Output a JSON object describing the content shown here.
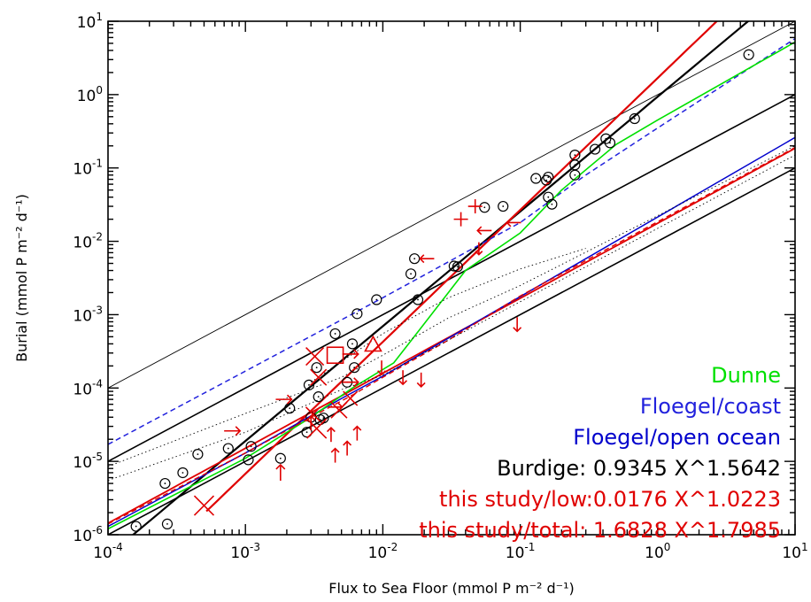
{
  "chart_data": {
    "type": "scatter",
    "xscale": "log",
    "yscale": "log",
    "xlim": [
      0.0001,
      10
    ],
    "ylim": [
      1e-06,
      10
    ],
    "xlabel": "Flux to Sea Floor (mmol P m⁻² d⁻¹)",
    "ylabel": "Burial (mmol P m⁻² d⁻¹)",
    "x_tick_labels": [
      {
        "value": 0.0001,
        "base": "10",
        "exp": "-4"
      },
      {
        "value": 0.001,
        "base": "10",
        "exp": "-3"
      },
      {
        "value": 0.01,
        "base": "10",
        "exp": "-2"
      },
      {
        "value": 0.1,
        "base": "10",
        "exp": "-1"
      },
      {
        "value": 1,
        "base": "10",
        "exp": "0"
      },
      {
        "value": 10,
        "base": "10",
        "exp": "1"
      }
    ],
    "y_tick_labels": [
      {
        "value": 1e-06,
        "base": "10",
        "exp": "-6"
      },
      {
        "value": 1e-05,
        "base": "10",
        "exp": "-5"
      },
      {
        "value": 0.0001,
        "base": "10",
        "exp": "-4"
      },
      {
        "value": 0.001,
        "base": "10",
        "exp": "-3"
      },
      {
        "value": 0.01,
        "base": "10",
        "exp": "-2"
      },
      {
        "value": 0.1,
        "base": "10",
        "exp": "-1"
      },
      {
        "value": 1,
        "base": "10",
        "exp": "0"
      },
      {
        "value": 10,
        "base": "10",
        "exp": "1"
      }
    ],
    "legend": [
      {
        "text": "Dunne",
        "color": "#00e000"
      },
      {
        "text": "Floegel/coast",
        "color": "#2222dd"
      },
      {
        "text": "Floegel/open ocean",
        "color": "#0000cc"
      },
      {
        "text": "Burdige: 0.9345 X^1.5642",
        "color": "#000000"
      },
      {
        "text": "this study/low:0.0176 X^1.0223",
        "color": "#e00000"
      },
      {
        "text": "this study/total: 1.6828 X^1.7985",
        "color": "#e00000"
      }
    ],
    "reference_lines": [
      {
        "color": "#000000",
        "dash": "solid",
        "width": 0.9,
        "x": [
          0.0001,
          10
        ],
        "y": [
          0.0001,
          10
        ]
      },
      {
        "color": "#000000",
        "dash": "solid",
        "width": 1.6,
        "x": [
          0.0001,
          10
        ],
        "y": [
          1e-05,
          1
        ]
      },
      {
        "color": "#000000",
        "dash": "solid",
        "width": 1.6,
        "x": [
          0.0001,
          10
        ],
        "y": [
          1e-06,
          0.1
        ]
      }
    ],
    "series": [
      {
        "name": "Burdige: 0.9345 X^1.5642",
        "kind": "power",
        "a": 0.9345,
        "b": 1.5642,
        "color": "#000000",
        "dash": "solid",
        "width": 2.2,
        "x_range": [
          0.000135,
          10
        ]
      },
      {
        "name": "this study/total: 1.6828 X^1.7985",
        "kind": "power",
        "a": 1.6828,
        "b": 1.7985,
        "color": "#e00000",
        "dash": "solid",
        "width": 2.2,
        "x_range": [
          0.00052,
          10
        ]
      },
      {
        "name": "this study/low:0.0176 X^1.0223",
        "kind": "power",
        "a": 0.0176,
        "b": 1.0223,
        "color": "#e00000",
        "dash": "solid",
        "width": 1.8,
        "x_range": [
          0.0001,
          10
        ]
      },
      {
        "name": "Floegel/open ocean",
        "kind": "points",
        "color": "#0000cc",
        "dash": "solid",
        "width": 1.5,
        "x": [
          0.0001,
          0.001,
          0.005,
          0.01,
          10
        ],
        "y": [
          1.3e-06,
          1.3e-05,
          7.2e-05,
          0.000145,
          0.26
        ]
      },
      {
        "name": "Floegel/coast",
        "kind": "points",
        "color": "#2222dd",
        "dash": "dash",
        "width": 1.5,
        "x": [
          0.0001,
          0.001,
          0.01,
          0.1,
          0.3,
          1,
          10
        ],
        "y": [
          1.7e-05,
          0.00017,
          0.0017,
          0.018,
          0.08,
          0.35,
          5.8
        ]
      },
      {
        "name": "Dunne",
        "kind": "points",
        "color": "#00e000",
        "dash": "solid",
        "width": 1.6,
        "x": [
          0.0001,
          0.001,
          0.003,
          0.006,
          0.012,
          0.02,
          0.04,
          0.1,
          0.2,
          0.5,
          1,
          10
        ],
        "y": [
          1.2e-06,
          1.1e-05,
          4e-05,
          0.0001,
          0.00022,
          0.00075,
          0.004,
          0.013,
          0.05,
          0.21,
          0.45,
          5.2
        ]
      },
      {
        "name": "",
        "kind": "points",
        "color": "#e00000",
        "dash": "dash",
        "width": 1.4,
        "x": [
          0.0001,
          0.001,
          0.003,
          0.006,
          0.01,
          0.03,
          0.1,
          10
        ],
        "y": [
          1.4e-06,
          1.3e-05,
          4e-05,
          8e-05,
          0.00014,
          0.00045,
          0.0018,
          0.19
        ]
      },
      {
        "name": "",
        "kind": "points",
        "color": "#000000",
        "dash": "dot",
        "width": 0.9,
        "x": [
          0.0001,
          0.001,
          0.005,
          0.01,
          0.03,
          0.1,
          10
        ],
        "y": [
          8.5e-06,
          4.5e-05,
          0.00014,
          0.00028,
          0.0009,
          0.0025,
          0.2
        ]
      },
      {
        "name": "",
        "kind": "points",
        "color": "#000000",
        "dash": "dot",
        "width": 0.9,
        "x": [
          0.0001,
          0.001,
          0.005,
          0.01,
          0.03,
          0.1,
          10
        ],
        "y": [
          5.5e-06,
          2.5e-05,
          9.5e-05,
          0.00015,
          0.00045,
          0.0015,
          0.15
        ]
      },
      {
        "name": "",
        "kind": "points",
        "color": "#000000",
        "dash": "dot",
        "width": 0.9,
        "x": [
          0.003,
          0.01,
          0.03,
          0.1,
          0.3
        ],
        "y": [
          0.00012,
          0.00055,
          0.0017,
          0.0042,
          0.008
        ]
      }
    ],
    "observations": [
      {
        "x": 0.00016,
        "y": 1.3e-06
      },
      {
        "x": 0.00026,
        "y": 5e-06
      },
      {
        "x": 0.00027,
        "y": 1.4e-06
      },
      {
        "x": 0.00035,
        "y": 7e-06
      },
      {
        "x": 0.00045,
        "y": 1.25e-05
      },
      {
        "x": 0.00075,
        "y": 1.5e-05
      },
      {
        "x": 0.00105,
        "y": 1.05e-05
      },
      {
        "x": 0.0011,
        "y": 1.6e-05
      },
      {
        "x": 0.0018,
        "y": 1.1e-05
      },
      {
        "x": 0.0021,
        "y": 5.3e-05
      },
      {
        "x": 0.0028,
        "y": 2.5e-05
      },
      {
        "x": 0.0029,
        "y": 0.00011
      },
      {
        "x": 0.003,
        "y": 4e-05
      },
      {
        "x": 0.0033,
        "y": 0.00019
      },
      {
        "x": 0.0034,
        "y": 7.6e-05
      },
      {
        "x": 0.0035,
        "y": 3.7e-05
      },
      {
        "x": 0.0037,
        "y": 3.9e-05
      },
      {
        "x": 0.0045,
        "y": 0.00055
      },
      {
        "x": 0.0055,
        "y": 0.00012
      },
      {
        "x": 0.006,
        "y": 0.0004
      },
      {
        "x": 0.0062,
        "y": 0.00019
      },
      {
        "x": 0.0065,
        "y": 0.00103
      },
      {
        "x": 0.009,
        "y": 0.0016
      },
      {
        "x": 0.016,
        "y": 0.0036
      },
      {
        "x": 0.017,
        "y": 0.0058
      },
      {
        "x": 0.018,
        "y": 0.0016
      },
      {
        "x": 0.033,
        "y": 0.0046
      },
      {
        "x": 0.035,
        "y": 0.0045
      },
      {
        "x": 0.055,
        "y": 0.029
      },
      {
        "x": 0.075,
        "y": 0.03
      },
      {
        "x": 0.13,
        "y": 0.072
      },
      {
        "x": 0.155,
        "y": 0.068
      },
      {
        "x": 0.16,
        "y": 0.075
      },
      {
        "x": 0.16,
        "y": 0.04
      },
      {
        "x": 0.17,
        "y": 0.032
      },
      {
        "x": 0.25,
        "y": 0.15
      },
      {
        "x": 0.25,
        "y": 0.11
      },
      {
        "x": 0.25,
        "y": 0.08
      },
      {
        "x": 0.35,
        "y": 0.18
      },
      {
        "x": 0.42,
        "y": 0.25
      },
      {
        "x": 0.45,
        "y": 0.22
      },
      {
        "x": 0.68,
        "y": 0.47
      },
      {
        "x": 4.6,
        "y": 3.5
      }
    ],
    "markers": [
      {
        "shape": "x",
        "x": 0.0005,
        "y": 2.5e-06,
        "size": 11
      },
      {
        "shape": "x",
        "x": 0.0032,
        "y": 0.00027,
        "size": 10
      },
      {
        "shape": "x",
        "x": 0.0034,
        "y": 0.00014,
        "size": 9
      },
      {
        "shape": "x",
        "x": 0.0031,
        "y": 4.4e-05,
        "size": 8
      },
      {
        "shape": "x",
        "x": 0.0033,
        "y": 2.8e-05,
        "size": 11
      },
      {
        "shape": "x",
        "x": 0.0048,
        "y": 5e-05,
        "size": 9
      },
      {
        "shape": "x",
        "x": 0.0058,
        "y": 7.2e-05,
        "size": 8
      },
      {
        "shape": "square",
        "x": 0.0045,
        "y": 0.00028,
        "size": 9
      },
      {
        "shape": "triangle",
        "x": 0.0085,
        "y": 0.00039,
        "size": 9
      },
      {
        "shape": "plus",
        "x": 0.037,
        "y": 0.02,
        "size": 8
      },
      {
        "shape": "plus",
        "x": 0.047,
        "y": 0.03,
        "size": 8
      },
      {
        "shape": "arrow-right",
        "x": 0.0008,
        "y": 2.6e-05,
        "size": 9
      },
      {
        "shape": "arrow-right",
        "x": 0.0019,
        "y": 7e-05,
        "size": 9
      },
      {
        "shape": "arrow-right",
        "x": 0.0058,
        "y": 0.00029,
        "size": 9
      },
      {
        "shape": "arrow-right",
        "x": 0.0058,
        "y": 0.00012,
        "size": 9
      },
      {
        "shape": "arrow-right",
        "x": 0.0045,
        "y": 5.5e-05,
        "size": 8
      },
      {
        "shape": "arrow-left",
        "x": 0.055,
        "y": 0.014,
        "size": 8
      },
      {
        "shape": "arrow-left",
        "x": 0.09,
        "y": 0.018,
        "size": 8
      },
      {
        "shape": "arrow-left",
        "x": 0.021,
        "y": 0.0058,
        "size": 8
      },
      {
        "shape": "arrow-up",
        "x": 0.0018,
        "y": 7e-06,
        "size": 9
      },
      {
        "shape": "arrow-up",
        "x": 0.003,
        "y": 3.3e-05,
        "size": 8
      },
      {
        "shape": "arrow-up",
        "x": 0.0042,
        "y": 2.3e-05,
        "size": 8
      },
      {
        "shape": "arrow-up",
        "x": 0.0045,
        "y": 1.2e-05,
        "size": 8
      },
      {
        "shape": "arrow-up",
        "x": 0.0055,
        "y": 1.5e-05,
        "size": 8
      },
      {
        "shape": "arrow-up",
        "x": 0.0065,
        "y": 2.4e-05,
        "size": 8
      },
      {
        "shape": "arrow-down",
        "x": 0.0098,
        "y": 0.00019,
        "size": 8
      },
      {
        "shape": "arrow-down",
        "x": 0.014,
        "y": 0.00014,
        "size": 8
      },
      {
        "shape": "arrow-down",
        "x": 0.019,
        "y": 0.00013,
        "size": 8
      },
      {
        "shape": "arrow-down",
        "x": 0.095,
        "y": 0.00074,
        "size": 8
      },
      {
        "shape": "arrow-down",
        "x": 0.05,
        "y": 0.008,
        "size": 7
      }
    ],
    "marker_color": "#e00000"
  }
}
